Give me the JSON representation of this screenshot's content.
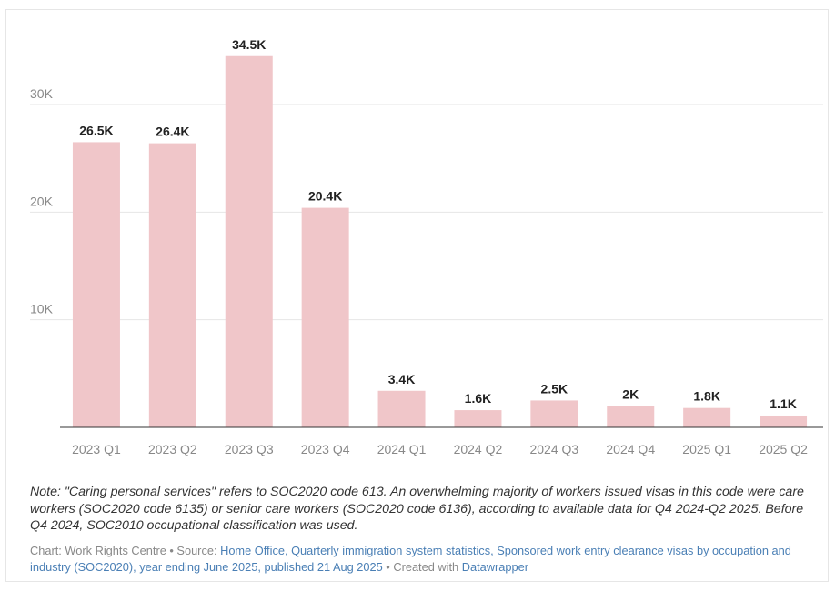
{
  "chart_data": {
    "type": "bar",
    "title": "",
    "xlabel": "",
    "ylabel": "",
    "categories": [
      "2023 Q1",
      "2023 Q2",
      "2023 Q3",
      "2023 Q4",
      "2024 Q1",
      "2024 Q2",
      "2024 Q3",
      "2024 Q4",
      "2025 Q1",
      "2025 Q2"
    ],
    "values": [
      26500,
      26400,
      34500,
      20400,
      3400,
      1600,
      2500,
      2000,
      1800,
      1100
    ],
    "value_labels": [
      "26.5K",
      "26.4K",
      "34.5K",
      "20.4K",
      "3.4K",
      "1.6K",
      "2.5K",
      "2K",
      "1.8K",
      "1.1K"
    ],
    "ylim": [
      0,
      36000
    ],
    "yticks": [
      10000,
      20000,
      30000
    ],
    "ytick_labels": [
      "10K",
      "20K",
      "30K"
    ],
    "grid": true,
    "legend": "none",
    "bar_color": "#f0c6c9"
  },
  "notes": {
    "text": "Note: \"Caring personal services\" refers to SOC2020 code 613. An overwhelming majority of workers issued visas in this code were care workers (SOC2020 code 6135) or senior care workers (SOC2020 code 6136), according to available data for Q4 2024-Q2 2025. Before Q4 2024, SOC2010 occupational classification was used."
  },
  "credits": {
    "chart_prefix": "Chart: Work Rights Centre • Source: ",
    "source_link": "Home Office, Quarterly immigration system statistics, Sponsored work entry clearance visas by occupation and industry (SOC2020), year ending June 2025, published 21 Aug 2025",
    "created_prefix": " • Created with ",
    "tool_link": "Datawrapper"
  },
  "colors": {
    "link": "#4a7fb5",
    "grid": "#e6e6e6",
    "axis": "#333333",
    "tick_text": "#888888",
    "value_text": "#222222"
  }
}
